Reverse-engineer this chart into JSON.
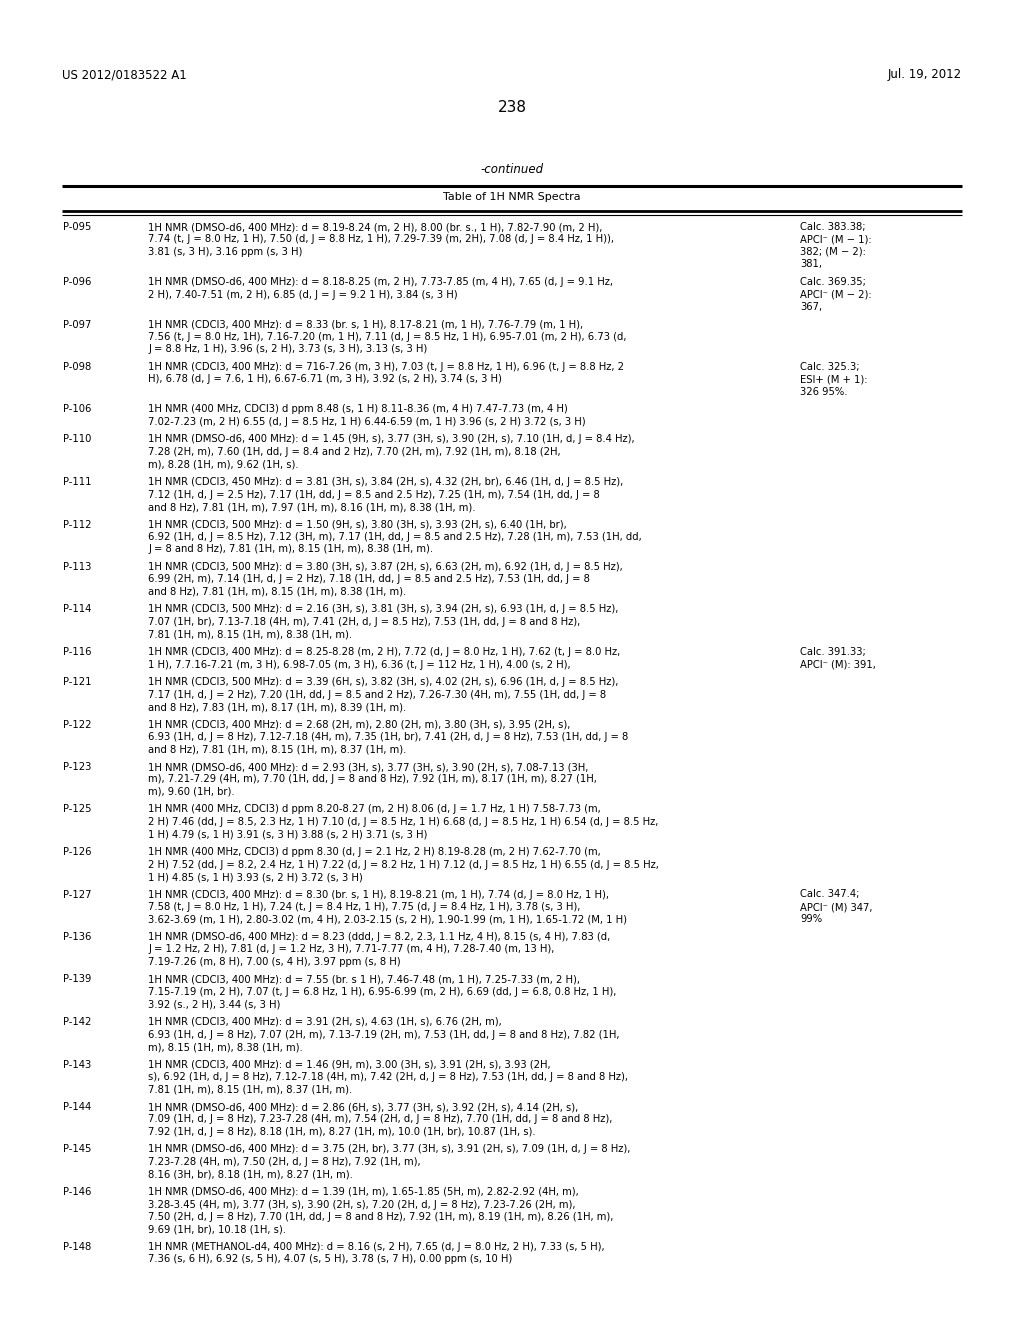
{
  "header_left": "US 2012/0183522 A1",
  "header_right": "Jul. 19, 2012",
  "page_number": "238",
  "continued_text": "-continued",
  "table_title": "Table of 1H NMR Spectra",
  "background_color": "#ffffff",
  "text_color": "#000000",
  "rows": [
    {
      "id": "P-095",
      "nmr": "1H NMR (DMSO-d6, 400 MHz): d = 8.19-8.24 (m, 2 H), 8.00 (br. s., 1 H), 7.82-7.90 (m, 2 H),\n7.74 (t, J = 8.0 Hz, 1 H), 7.50 (d, J = 8.8 Hz, 1 H), 7.29-7.39 (m, 2H), 7.08 (d, J = 8.4 Hz, 1 H)),\n3.81 (s, 3 H), 3.16 ppm (s, 3 H)",
      "calc": "Calc. 383.38;\nAPCI⁻ (M − 1):\n382; (M − 2):\n381,"
    },
    {
      "id": "P-096",
      "nmr": "1H NMR (DMSO-d6, 400 MHz): d = 8.18-8.25 (m, 2 H), 7.73-7.85 (m, 4 H), 7.65 (d, J = 9.1 Hz,\n2 H), 7.40-7.51 (m, 2 H), 6.85 (d, J = J = 9.2 1 H), 3.84 (s, 3 H)",
      "calc": "Calc. 369.35;\nAPCI⁻ (M − 2):\n367,"
    },
    {
      "id": "P-097",
      "nmr": "1H NMR (CDCl3, 400 MHz): d = 8.33 (br. s, 1 H), 8.17-8.21 (m, 1 H), 7.76-7.79 (m, 1 H),\n7.56 (t, J = 8.0 Hz, 1H), 7.16-7.20 (m, 1 H), 7.11 (d, J = 8.5 Hz, 1 H), 6.95-7.01 (m, 2 H), 6.73 (d,\nJ = 8.8 Hz, 1 H), 3.96 (s, 2 H), 3.73 (s, 3 H), 3.13 (s, 3 H)",
      "calc": ""
    },
    {
      "id": "P-098",
      "nmr": "1H NMR (CDCl3, 400 MHz): d = 716-7.26 (m, 3 H), 7.03 (t, J = 8.8 Hz, 1 H), 6.96 (t, J = 8.8 Hz, 2\nH), 6.78 (d, J = 7.6, 1 H), 6.67-6.71 (m, 3 H), 3.92 (s, 2 H), 3.74 (s, 3 H)",
      "calc": "Calc. 325.3;\nESI+ (M + 1):\n326 95%."
    },
    {
      "id": "P-106",
      "nmr": "1H NMR (400 MHz, CDCl3) d ppm 8.48 (s, 1 H) 8.11-8.36 (m, 4 H) 7.47-7.73 (m, 4 H)\n7.02-7.23 (m, 2 H) 6.55 (d, J = 8.5 Hz, 1 H) 6.44-6.59 (m, 1 H) 3.96 (s, 2 H) 3.72 (s, 3 H)",
      "calc": ""
    },
    {
      "id": "P-110",
      "nmr": "1H NMR (DMSO-d6, 400 MHz): d = 1.45 (9H, s), 3.77 (3H, s), 3.90 (2H, s), 7.10 (1H, d, J = 8.4 Hz),\n7.28 (2H, m), 7.60 (1H, dd, J = 8.4 and 2 Hz), 7.70 (2H, m), 7.92 (1H, m), 8.18 (2H,\nm), 8.28 (1H, m), 9.62 (1H, s).",
      "calc": ""
    },
    {
      "id": "P-111",
      "nmr": "1H NMR (CDCl3, 450 MHz): d = 3.81 (3H, s), 3.84 (2H, s), 4.32 (2H, br), 6.46 (1H, d, J = 8.5 Hz),\n7.12 (1H, d, J = 2.5 Hz), 7.17 (1H, dd, J = 8.5 and 2.5 Hz), 7.25 (1H, m), 7.54 (1H, dd, J = 8\nand 8 Hz), 7.81 (1H, m), 7.97 (1H, m), 8.16 (1H, m), 8.38 (1H, m).",
      "calc": ""
    },
    {
      "id": "P-112",
      "nmr": "1H NMR (CDCl3, 500 MHz): d = 1.50 (9H, s), 3.80 (3H, s), 3.93 (2H, s), 6.40 (1H, br),\n6.92 (1H, d, J = 8.5 Hz), 7.12 (3H, m), 7.17 (1H, dd, J = 8.5 and 2.5 Hz), 7.28 (1H, m), 7.53 (1H, dd,\nJ = 8 and 8 Hz), 7.81 (1H, m), 8.15 (1H, m), 8.38 (1H, m).",
      "calc": ""
    },
    {
      "id": "P-113",
      "nmr": "1H NMR (CDCl3, 500 MHz): d = 3.80 (3H, s), 3.87 (2H, s), 6.63 (2H, m), 6.92 (1H, d, J = 8.5 Hz),\n6.99 (2H, m), 7.14 (1H, d, J = 2 Hz), 7.18 (1H, dd, J = 8.5 and 2.5 Hz), 7.53 (1H, dd, J = 8\nand 8 Hz), 7.81 (1H, m), 8.15 (1H, m), 8.38 (1H, m).",
      "calc": ""
    },
    {
      "id": "P-114",
      "nmr": "1H NMR (CDCl3, 500 MHz): d = 2.16 (3H, s), 3.81 (3H, s), 3.94 (2H, s), 6.93 (1H, d, J = 8.5 Hz),\n7.07 (1H, br), 7.13-7.18 (4H, m), 7.41 (2H, d, J = 8.5 Hz), 7.53 (1H, dd, J = 8 and 8 Hz),\n7.81 (1H, m), 8.15 (1H, m), 8.38 (1H, m).",
      "calc": ""
    },
    {
      "id": "P-116",
      "nmr": "1H NMR (CDCl3, 400 MHz): d = 8.25-8.28 (m, 2 H), 7.72 (d, J = 8.0 Hz, 1 H), 7.62 (t, J = 8.0 Hz,\n1 H), 7.7.16-7.21 (m, 3 H), 6.98-7.05 (m, 3 H), 6.36 (t, J = 112 Hz, 1 H), 4.00 (s, 2 H),",
      "calc": "Calc. 391.33;\nAPCI⁻ (M): 391,"
    },
    {
      "id": "P-121",
      "nmr": "1H NMR (CDCl3, 500 MHz): d = 3.39 (6H, s), 3.82 (3H, s), 4.02 (2H, s), 6.96 (1H, d, J = 8.5 Hz),\n7.17 (1H, d, J = 2 Hz), 7.20 (1H, dd, J = 8.5 and 2 Hz), 7.26-7.30 (4H, m), 7.55 (1H, dd, J = 8\nand 8 Hz), 7.83 (1H, m), 8.17 (1H, m), 8.39 (1H, m).",
      "calc": ""
    },
    {
      "id": "P-122",
      "nmr": "1H NMR (CDCl3, 400 MHz): d = 2.68 (2H, m), 2.80 (2H, m), 3.80 (3H, s), 3.95 (2H, s),\n6.93 (1H, d, J = 8 Hz), 7.12-7.18 (4H, m), 7.35 (1H, br), 7.41 (2H, d, J = 8 Hz), 7.53 (1H, dd, J = 8\nand 8 Hz), 7.81 (1H, m), 8.15 (1H, m), 8.37 (1H, m).",
      "calc": ""
    },
    {
      "id": "P-123",
      "nmr": "1H NMR (DMSO-d6, 400 MHz): d = 2.93 (3H, s), 3.77 (3H, s), 3.90 (2H, s), 7.08-7.13 (3H,\nm), 7.21-7.29 (4H, m), 7.70 (1H, dd, J = 8 and 8 Hz), 7.92 (1H, m), 8.17 (1H, m), 8.27 (1H,\nm), 9.60 (1H, br).",
      "calc": ""
    },
    {
      "id": "P-125",
      "nmr": "1H NMR (400 MHz, CDCl3) d ppm 8.20-8.27 (m, 2 H) 8.06 (d, J = 1.7 Hz, 1 H) 7.58-7.73 (m,\n2 H) 7.46 (dd, J = 8.5, 2.3 Hz, 1 H) 7.10 (d, J = 8.5 Hz, 1 H) 6.68 (d, J = 8.5 Hz, 1 H) 6.54 (d, J = 8.5 Hz,\n1 H) 4.79 (s, 1 H) 3.91 (s, 3 H) 3.88 (s, 2 H) 3.71 (s, 3 H)",
      "calc": ""
    },
    {
      "id": "P-126",
      "nmr": "1H NMR (400 MHz, CDCl3) d ppm 8.30 (d, J = 2.1 Hz, 2 H) 8.19-8.28 (m, 2 H) 7.62-7.70 (m,\n2 H) 7.52 (dd, J = 8.2, 2.4 Hz, 1 H) 7.22 (d, J = 8.2 Hz, 1 H) 7.12 (d, J = 8.5 Hz, 1 H) 6.55 (d, J = 8.5 Hz,\n1 H) 4.85 (s, 1 H) 3.93 (s, 2 H) 3.72 (s, 3 H)",
      "calc": ""
    },
    {
      "id": "P-127",
      "nmr": "1H NMR (CDCl3, 400 MHz): d = 8.30 (br. s, 1 H), 8.19-8.21 (m, 1 H), 7.74 (d, J = 8.0 Hz, 1 H),\n7.58 (t, J = 8.0 Hz, 1 H), 7.24 (t, J = 8.4 Hz, 1 H), 7.75 (d, J = 8.4 Hz, 1 H), 3.78 (s, 3 H),\n3.62-3.69 (m, 1 H), 2.80-3.02 (m, 4 H), 2.03-2.15 (s, 2 H), 1.90-1.99 (m, 1 H), 1.65-1.72 (M, 1 H)",
      "calc": "Calc. 347.4;\nAPCI⁻ (M) 347,\n99%"
    },
    {
      "id": "P-136",
      "nmr": "1H NMR (DMSO-d6, 400 MHz): d = 8.23 (ddd, J = 8.2, 2.3, 1.1 Hz, 4 H), 8.15 (s, 4 H), 7.83 (d,\nJ = 1.2 Hz, 2 H), 7.81 (d, J = 1.2 Hz, 3 H), 7.71-7.77 (m, 4 H), 7.28-7.40 (m, 13 H),\n7.19-7.26 (m, 8 H), 7.00 (s, 4 H), 3.97 ppm (s, 8 H)",
      "calc": ""
    },
    {
      "id": "P-139",
      "nmr": "1H NMR (CDCl3, 400 MHz): d = 7.55 (br. s 1 H), 7.46-7.48 (m, 1 H), 7.25-7.33 (m, 2 H),\n7.15-7.19 (m, 2 H), 7.07 (t, J = 6.8 Hz, 1 H), 6.95-6.99 (m, 2 H), 6.69 (dd, J = 6.8, 0.8 Hz, 1 H),\n3.92 (s., 2 H), 3.44 (s, 3 H)",
      "calc": ""
    },
    {
      "id": "P-142",
      "nmr": "1H NMR (CDCl3, 400 MHz): d = 3.91 (2H, s), 4.63 (1H, s), 6.76 (2H, m),\n6.93 (1H, d, J = 8 Hz), 7.07 (2H, m), 7.13-7.19 (2H, m), 7.53 (1H, dd, J = 8 and 8 Hz), 7.82 (1H,\nm), 8.15 (1H, m), 8.38 (1H, m).",
      "calc": ""
    },
    {
      "id": "P-143",
      "nmr": "1H NMR (CDCl3, 400 MHz): d = 1.46 (9H, m), 3.00 (3H, s), 3.91 (2H, s), 3.93 (2H,\ns), 6.92 (1H, d, J = 8 Hz), 7.12-7.18 (4H, m), 7.42 (2H, d, J = 8 Hz), 7.53 (1H, dd, J = 8 and 8 Hz),\n7.81 (1H, m), 8.15 (1H, m), 8.37 (1H, m).",
      "calc": ""
    },
    {
      "id": "P-144",
      "nmr": "1H NMR (DMSO-d6, 400 MHz): d = 2.86 (6H, s), 3.77 (3H, s), 3.92 (2H, s), 4.14 (2H, s),\n7.09 (1H, d, J = 8 Hz), 7.23-7.28 (4H, m), 7.54 (2H, d, J = 8 Hz), 7.70 (1H, dd, J = 8 and 8 Hz),\n7.92 (1H, d, J = 8 Hz), 8.18 (1H, m), 8.27 (1H, m), 10.0 (1H, br), 10.87 (1H, s).",
      "calc": ""
    },
    {
      "id": "P-145",
      "nmr": "1H NMR (DMSO-d6, 400 MHz): d = 3.75 (2H, br), 3.77 (3H, s), 3.91 (2H, s), 7.09 (1H, d, J = 8 Hz),\n7.23-7.28 (4H, m), 7.50 (2H, d, J = 8 Hz), 7.92 (1H, m),\n8.16 (3H, br), 8.18 (1H, m), 8.27 (1H, m).",
      "calc": ""
    },
    {
      "id": "P-146",
      "nmr": "1H NMR (DMSO-d6, 400 MHz): d = 1.39 (1H, m), 1.65-1.85 (5H, m), 2.82-2.92 (4H, m),\n3.28-3.45 (4H, m), 3.77 (3H, s), 3.90 (2H, s), 7.20 (2H, d, J = 8 Hz), 7.23-7.26 (2H, m),\n7.50 (2H, d, J = 8 Hz), 7.70 (1H, dd, J = 8 and 8 Hz), 7.92 (1H, m), 8.19 (1H, m), 8.26 (1H, m),\n9.69 (1H, br), 10.18 (1H, s).",
      "calc": ""
    },
    {
      "id": "P-148",
      "nmr": "1H NMR (METHANOL-d4, 400 MHz): d = 8.16 (s, 2 H), 7.65 (d, J = 8.0 Hz, 2 H), 7.33 (s, 5 H),\n7.36 (s, 6 H), 6.92 (s, 5 H), 4.07 (s, 5 H), 3.78 (s, 7 H), 0.00 ppm (s, 10 H)",
      "calc": ""
    }
  ]
}
